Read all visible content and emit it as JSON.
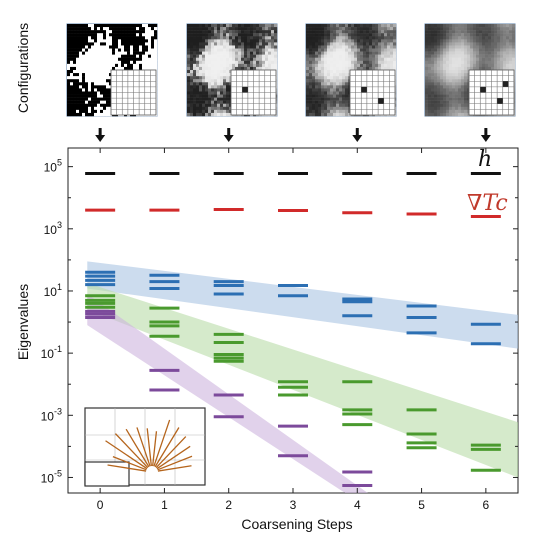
{
  "chart_data": {
    "type": "scatter",
    "title": "",
    "xlabel": "Coarsening Steps",
    "ylabel": "Eigenvalues",
    "side_label": "Configurations",
    "x_ticks": [
      0,
      1,
      2,
      3,
      4,
      5,
      6
    ],
    "x_tick_labels": [
      "0",
      "1",
      "2",
      "3",
      "4",
      "5",
      "6"
    ],
    "xlim": [
      -0.5,
      6.5
    ],
    "yscale": "log",
    "ylim_exponent": [
      -5.5,
      5.6
    ],
    "y_tick_exponents": [
      5,
      3,
      1,
      -1,
      -3,
      -5
    ],
    "y_tick_base": "10",
    "y_tick_exponent_labels": [
      "5",
      "3",
      "1",
      "-1",
      "-3",
      "-5"
    ],
    "arrow_steps": [
      0,
      2,
      4,
      6
    ],
    "series": [
      {
        "name": "h",
        "color": "#111111",
        "points": [
          [
            0,
            60000
          ],
          [
            1,
            60000
          ],
          [
            2,
            60000
          ],
          [
            3,
            60000
          ],
          [
            4,
            60000
          ],
          [
            5,
            60000
          ],
          [
            6,
            60000
          ]
        ]
      },
      {
        "name": "∇Tc",
        "color": "#d12a2a",
        "points": [
          [
            0,
            4000
          ],
          [
            1,
            4000
          ],
          [
            2,
            4200
          ],
          [
            3,
            3900
          ],
          [
            4,
            3300
          ],
          [
            5,
            3000
          ],
          [
            6,
            2500
          ]
        ]
      },
      {
        "name": "",
        "color": "#2c6fb3",
        "points": [
          [
            0,
            40
          ],
          [
            0,
            30
          ],
          [
            0,
            22
          ],
          [
            0,
            16
          ],
          [
            1,
            32
          ],
          [
            1,
            20
          ],
          [
            1,
            12
          ],
          [
            2,
            20
          ],
          [
            2,
            15
          ],
          [
            2,
            8
          ],
          [
            3,
            15
          ],
          [
            3,
            7
          ],
          [
            4,
            5.5
          ],
          [
            4,
            4.5
          ],
          [
            4,
            1.6
          ],
          [
            5,
            3.3
          ],
          [
            5,
            1.4
          ],
          [
            5,
            0.45
          ],
          [
            6,
            0.85
          ],
          [
            6,
            0.2
          ]
        ]
      },
      {
        "name": "",
        "color": "#4a9a2e",
        "points": [
          [
            0,
            7
          ],
          [
            0,
            5
          ],
          [
            0,
            4
          ],
          [
            0,
            3
          ],
          [
            1,
            2.8
          ],
          [
            1,
            1
          ],
          [
            1,
            0.75
          ],
          [
            1,
            0.35
          ],
          [
            2,
            0.4
          ],
          [
            2,
            0.22
          ],
          [
            2,
            0.09
          ],
          [
            2,
            0.07
          ],
          [
            2,
            0.055
          ],
          [
            3,
            0.012
          ],
          [
            3,
            0.008
          ],
          [
            3,
            0.0045
          ],
          [
            4,
            0.012
          ],
          [
            4,
            0.0015
          ],
          [
            4,
            0.0011
          ],
          [
            4,
            0.0005
          ],
          [
            5,
            0.0015
          ],
          [
            5,
            0.00025
          ],
          [
            5,
            0.00013
          ],
          [
            5,
            9e-05
          ],
          [
            6,
            0.00011
          ],
          [
            6,
            8e-05
          ],
          [
            6,
            1.7e-05
          ]
        ]
      },
      {
        "name": "",
        "color": "#7c4a9b",
        "points": [
          [
            0,
            2.2
          ],
          [
            0,
            1.8
          ],
          [
            0,
            1.4
          ],
          [
            1,
            0.028
          ],
          [
            1,
            0.0065
          ],
          [
            2,
            0.0045
          ],
          [
            2,
            0.0009
          ],
          [
            3,
            0.00045
          ],
          [
            3,
            5e-05
          ],
          [
            4,
            1.5e-05
          ],
          [
            4,
            5.5e-06
          ]
        ]
      }
    ],
    "bands": [
      {
        "color": "#aac4e2",
        "upper": [
          [
            -0.2,
            90
          ],
          [
            6.5,
            1.7
          ]
        ],
        "lower": [
          [
            -0.2,
            12
          ],
          [
            6.5,
            0.14
          ]
        ]
      },
      {
        "color": "#b9dca8",
        "upper": [
          [
            -0.2,
            18
          ],
          [
            6.5,
            0.0006
          ]
        ],
        "lower": [
          [
            -0.2,
            2.5
          ],
          [
            6.5,
            1e-05
          ]
        ]
      },
      {
        "color": "#cdb4de",
        "upper": [
          [
            -0.2,
            8
          ],
          [
            4.2,
            2.8e-06
          ]
        ],
        "lower": [
          [
            -0.2,
            0.8
          ],
          [
            3.85,
            2.8e-06
          ]
        ]
      }
    ],
    "grid": false,
    "inset": "honeycomb-lattice-with-lines"
  }
}
